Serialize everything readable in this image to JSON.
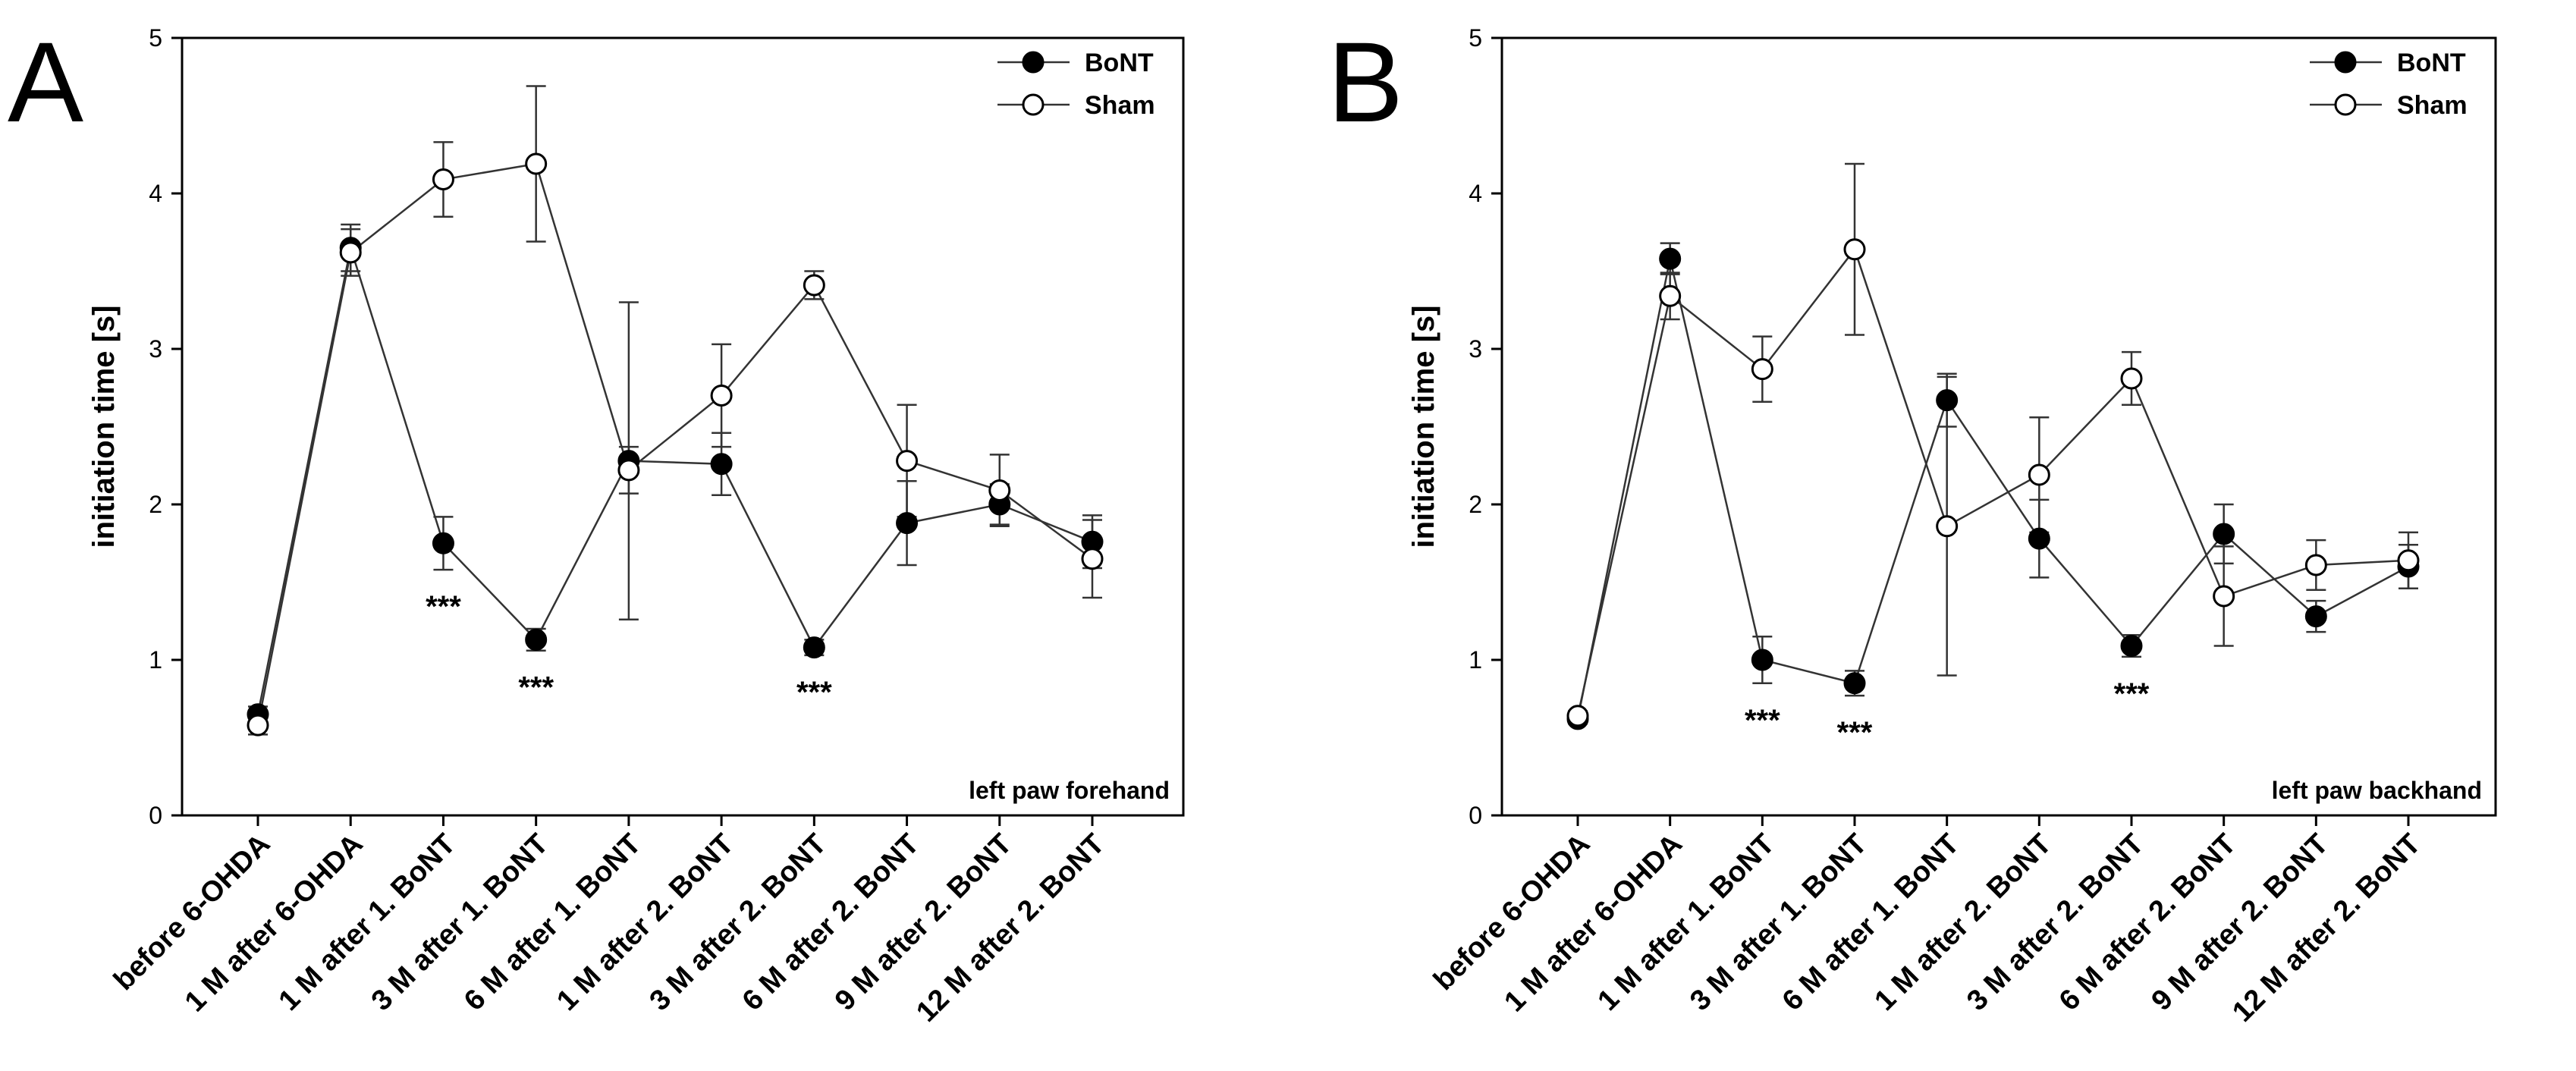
{
  "chart_data": [
    {
      "panel": "A",
      "type": "line",
      "ylabel": "initiation time [s]",
      "ylim": [
        0,
        5
      ],
      "yticks": [
        "0",
        "1",
        "2",
        "3",
        "4",
        "5"
      ],
      "annotation": "left paw forehand",
      "legend_position": "top-right",
      "categories": [
        "before 6-OHDA",
        "1 M after 6-OHDA",
        "1 M after 1. BoNT",
        "3 M after 1. BoNT",
        "6 M after 1. BoNT",
        "1 M after 2. BoNT",
        "3 M after 2. BoNT",
        "6 M after 2. BoNT",
        "9 M after 2. BoNT",
        "12 M after 2. BoNT"
      ],
      "series": [
        {
          "name": "BoNT",
          "marker": "filled",
          "values": [
            0.65,
            3.65,
            1.75,
            1.13,
            2.28,
            2.26,
            1.08,
            1.88,
            2.0,
            1.76
          ],
          "errors": [
            0.05,
            0.15,
            0.17,
            0.07,
            1.02,
            0.2,
            0.05,
            0.27,
            0.13,
            0.17
          ]
        },
        {
          "name": "Sham",
          "marker": "open",
          "values": [
            0.58,
            3.62,
            4.09,
            4.19,
            2.22,
            2.7,
            3.41,
            2.28,
            2.09,
            1.65
          ],
          "errors": [
            0.06,
            0.15,
            0.24,
            0.5,
            0.15,
            0.33,
            0.09,
            0.36,
            0.23,
            0.25
          ]
        }
      ],
      "significance": [
        {
          "index": 2,
          "series": "BoNT",
          "label": "***"
        },
        {
          "index": 3,
          "series": "BoNT",
          "label": "***"
        },
        {
          "index": 6,
          "series": "BoNT",
          "label": "***"
        }
      ]
    },
    {
      "panel": "B",
      "type": "line",
      "ylabel": "initiation time [s]",
      "ylim": [
        0,
        5
      ],
      "yticks": [
        "0",
        "1",
        "2",
        "3",
        "4",
        "5"
      ],
      "annotation": "left paw backhand",
      "legend_position": "top-right",
      "categories": [
        "before 6-OHDA",
        "1 M after 6-OHDA",
        "1 M after 1. BoNT",
        "3 M after 1. BoNT",
        "6 M after 1. BoNT",
        "1 M after 2. BoNT",
        "3 M after 2. BoNT",
        "6 M after 2. BoNT",
        "9 M after 2. BoNT",
        "12 M after 2. BoNT"
      ],
      "series": [
        {
          "name": "BoNT",
          "marker": "filled",
          "values": [
            0.62,
            3.58,
            1.0,
            0.85,
            2.67,
            1.78,
            1.09,
            1.81,
            1.28,
            1.6
          ],
          "errors": [
            0.03,
            0.1,
            0.15,
            0.08,
            0.17,
            0.25,
            0.07,
            0.19,
            0.1,
            0.14
          ]
        },
        {
          "name": "Sham",
          "marker": "open",
          "values": [
            0.64,
            3.34,
            2.87,
            3.64,
            1.86,
            2.19,
            2.81,
            1.41,
            1.61,
            1.64
          ],
          "errors": [
            0.03,
            0.15,
            0.21,
            0.55,
            0.96,
            0.37,
            0.17,
            0.32,
            0.16,
            0.18
          ]
        }
      ],
      "significance": [
        {
          "index": 2,
          "series": "BoNT",
          "label": "***"
        },
        {
          "index": 3,
          "series": "BoNT",
          "label": "***"
        },
        {
          "index": 6,
          "series": "BoNT",
          "label": "***"
        }
      ]
    }
  ]
}
